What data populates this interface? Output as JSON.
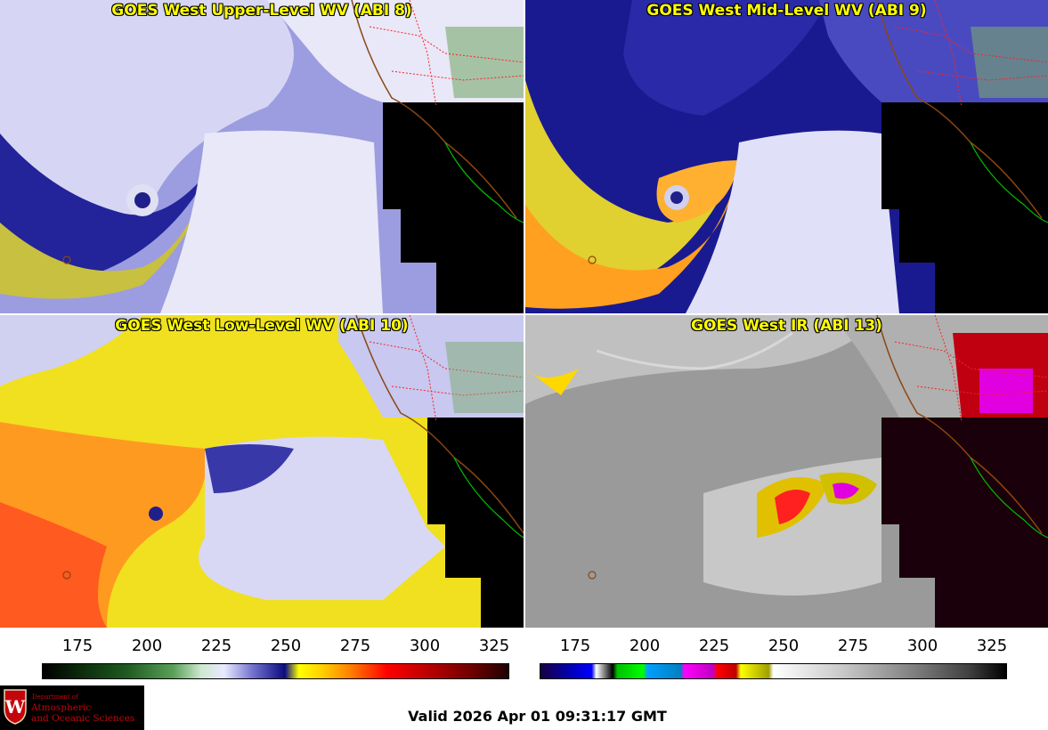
{
  "panels": [
    {
      "title": "GOES West Upper-Level WV (ABI 8)"
    },
    {
      "title": "GOES West Mid-Level WV (ABI 9)"
    },
    {
      "title": "GOES West Low-Level WV (ABI 10)"
    },
    {
      "title": "GOES West IR (ABI 13)"
    }
  ],
  "colorbars": [
    {
      "ticks": [
        "175",
        "200",
        "225",
        "250",
        "275",
        "300",
        "325"
      ]
    },
    {
      "ticks": [
        "175",
        "200",
        "225",
        "250",
        "275",
        "300",
        "325"
      ]
    }
  ],
  "logo": {
    "department": "Department of",
    "line1": "Atmospheric",
    "line2": "and Oceanic Sciences"
  },
  "footer": {
    "valid_time": "Valid 2026 Apr 01 09:31:17 GMT"
  }
}
